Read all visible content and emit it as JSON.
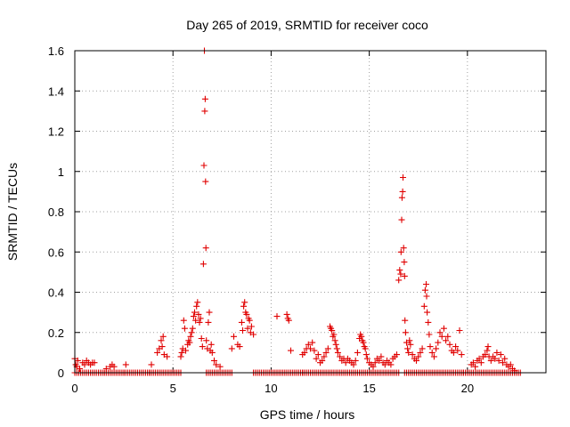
{
  "chart_data": {
    "type": "scatter",
    "title": "Day 265 of 2019, SRMTID for receiver coco",
    "xlabel": "GPS time / hours",
    "ylabel": "SRMTID / TECUs",
    "xlim": [
      0,
      24
    ],
    "ylim": [
      0,
      1.6
    ],
    "xticks": [
      0,
      5,
      10,
      15,
      20
    ],
    "xtick_labels": [
      "0",
      "5",
      "10",
      "15",
      "20"
    ],
    "yticks": [
      0,
      0.2,
      0.4,
      0.6,
      0.8,
      1.0,
      1.2,
      1.4,
      1.6
    ],
    "ytick_labels": [
      "0",
      "0.2",
      "0.4",
      "0.6",
      "0.8",
      "1",
      "1.2",
      "1.4",
      "1.6"
    ],
    "grid": true,
    "marker": "+",
    "color": "#e00000",
    "series": [
      {
        "name": "SRMTID",
        "points": [
          [
            0.0,
            0.07
          ],
          [
            0.05,
            0.04
          ],
          [
            0.1,
            0.03
          ],
          [
            0.15,
            0.06
          ],
          [
            0.25,
            0.02
          ],
          [
            0.4,
            0.05
          ],
          [
            0.5,
            0.04
          ],
          [
            0.6,
            0.06
          ],
          [
            0.7,
            0.05
          ],
          [
            0.8,
            0.04
          ],
          [
            0.9,
            0.05
          ],
          [
            1.0,
            0.05
          ],
          [
            1.6,
            0.02
          ],
          [
            1.8,
            0.03
          ],
          [
            1.9,
            0.04
          ],
          [
            2.0,
            0.03
          ],
          [
            2.6,
            0.04
          ],
          [
            3.9,
            0.04
          ],
          [
            4.2,
            0.1
          ],
          [
            4.3,
            0.12
          ],
          [
            4.4,
            0.16
          ],
          [
            4.45,
            0.13
          ],
          [
            4.5,
            0.18
          ],
          [
            4.55,
            0.09
          ],
          [
            4.7,
            0.08
          ],
          [
            5.4,
            0.08
          ],
          [
            5.45,
            0.1
          ],
          [
            5.5,
            0.12
          ],
          [
            5.55,
            0.26
          ],
          [
            5.6,
            0.22
          ],
          [
            5.65,
            0.11
          ],
          [
            5.75,
            0.14
          ],
          [
            5.8,
            0.16
          ],
          [
            5.85,
            0.15
          ],
          [
            5.9,
            0.18
          ],
          [
            5.95,
            0.2
          ],
          [
            6.0,
            0.22
          ],
          [
            6.05,
            0.28
          ],
          [
            6.1,
            0.3
          ],
          [
            6.15,
            0.26
          ],
          [
            6.2,
            0.33
          ],
          [
            6.25,
            0.35
          ],
          [
            6.3,
            0.29
          ],
          [
            6.35,
            0.25
          ],
          [
            6.4,
            0.27
          ],
          [
            6.45,
            0.17
          ],
          [
            6.5,
            0.13
          ],
          [
            6.55,
            0.54
          ],
          [
            6.58,
            1.03
          ],
          [
            6.6,
            1.6
          ],
          [
            6.62,
            1.3
          ],
          [
            6.64,
            1.36
          ],
          [
            6.66,
            0.95
          ],
          [
            6.68,
            0.62
          ],
          [
            6.7,
            0.16
          ],
          [
            6.75,
            0.12
          ],
          [
            6.8,
            0.25
          ],
          [
            6.85,
            0.3
          ],
          [
            6.9,
            0.11
          ],
          [
            6.95,
            0.14
          ],
          [
            7.0,
            0.1
          ],
          [
            7.1,
            0.06
          ],
          [
            7.2,
            0.04
          ],
          [
            7.4,
            0.03
          ],
          [
            8.0,
            0.12
          ],
          [
            8.1,
            0.18
          ],
          [
            8.3,
            0.14
          ],
          [
            8.4,
            0.13
          ],
          [
            8.5,
            0.25
          ],
          [
            8.55,
            0.21
          ],
          [
            8.6,
            0.33
          ],
          [
            8.65,
            0.35
          ],
          [
            8.7,
            0.3
          ],
          [
            8.75,
            0.29
          ],
          [
            8.8,
            0.22
          ],
          [
            8.85,
            0.27
          ],
          [
            8.9,
            0.26
          ],
          [
            8.95,
            0.2
          ],
          [
            9.0,
            0.23
          ],
          [
            9.1,
            0.19
          ],
          [
            10.3,
            0.28
          ],
          [
            10.8,
            0.29
          ],
          [
            10.85,
            0.27
          ],
          [
            10.9,
            0.26
          ],
          [
            11.0,
            0.11
          ],
          [
            11.6,
            0.09
          ],
          [
            11.7,
            0.1
          ],
          [
            11.8,
            0.12
          ],
          [
            11.9,
            0.14
          ],
          [
            12.0,
            0.12
          ],
          [
            12.1,
            0.15
          ],
          [
            12.2,
            0.11
          ],
          [
            12.3,
            0.07
          ],
          [
            12.4,
            0.09
          ],
          [
            12.5,
            0.05
          ],
          [
            12.6,
            0.06
          ],
          [
            12.7,
            0.08
          ],
          [
            12.8,
            0.1
          ],
          [
            12.9,
            0.12
          ],
          [
            13.0,
            0.23
          ],
          [
            13.05,
            0.22
          ],
          [
            13.1,
            0.21
          ],
          [
            13.15,
            0.18
          ],
          [
            13.2,
            0.19
          ],
          [
            13.25,
            0.16
          ],
          [
            13.3,
            0.14
          ],
          [
            13.35,
            0.12
          ],
          [
            13.4,
            0.1
          ],
          [
            13.5,
            0.08
          ],
          [
            13.6,
            0.06
          ],
          [
            13.7,
            0.07
          ],
          [
            13.8,
            0.05
          ],
          [
            13.9,
            0.07
          ],
          [
            14.0,
            0.06
          ],
          [
            14.1,
            0.05
          ],
          [
            14.2,
            0.04
          ],
          [
            14.3,
            0.06
          ],
          [
            14.4,
            0.1
          ],
          [
            14.5,
            0.17
          ],
          [
            14.55,
            0.19
          ],
          [
            14.6,
            0.18
          ],
          [
            14.65,
            0.16
          ],
          [
            14.7,
            0.15
          ],
          [
            14.75,
            0.13
          ],
          [
            14.8,
            0.12
          ],
          [
            14.85,
            0.09
          ],
          [
            14.9,
            0.07
          ],
          [
            15.0,
            0.05
          ],
          [
            15.1,
            0.04
          ],
          [
            15.2,
            0.03
          ],
          [
            15.3,
            0.05
          ],
          [
            15.4,
            0.07
          ],
          [
            15.5,
            0.06
          ],
          [
            15.6,
            0.08
          ],
          [
            15.7,
            0.05
          ],
          [
            15.8,
            0.04
          ],
          [
            15.9,
            0.06
          ],
          [
            16.0,
            0.05
          ],
          [
            16.1,
            0.04
          ],
          [
            16.2,
            0.07
          ],
          [
            16.3,
            0.08
          ],
          [
            16.4,
            0.09
          ],
          [
            16.5,
            0.46
          ],
          [
            16.55,
            0.51
          ],
          [
            16.6,
            0.49
          ],
          [
            16.62,
            0.6
          ],
          [
            16.65,
            0.76
          ],
          [
            16.67,
            0.87
          ],
          [
            16.7,
            0.9
          ],
          [
            16.72,
            0.97
          ],
          [
            16.75,
            0.62
          ],
          [
            16.78,
            0.55
          ],
          [
            16.8,
            0.48
          ],
          [
            16.82,
            0.26
          ],
          [
            16.85,
            0.2
          ],
          [
            16.9,
            0.15
          ],
          [
            16.95,
            0.12
          ],
          [
            17.0,
            0.1
          ],
          [
            17.05,
            0.16
          ],
          [
            17.1,
            0.14
          ],
          [
            17.2,
            0.09
          ],
          [
            17.3,
            0.07
          ],
          [
            17.4,
            0.06
          ],
          [
            17.5,
            0.08
          ],
          [
            17.6,
            0.1
          ],
          [
            17.7,
            0.12
          ],
          [
            17.8,
            0.33
          ],
          [
            17.85,
            0.41
          ],
          [
            17.9,
            0.44
          ],
          [
            17.92,
            0.38
          ],
          [
            17.95,
            0.3
          ],
          [
            18.0,
            0.25
          ],
          [
            18.05,
            0.19
          ],
          [
            18.1,
            0.13
          ],
          [
            18.2,
            0.1
          ],
          [
            18.3,
            0.08
          ],
          [
            18.4,
            0.12
          ],
          [
            18.5,
            0.15
          ],
          [
            18.6,
            0.2
          ],
          [
            18.7,
            0.18
          ],
          [
            18.8,
            0.22
          ],
          [
            18.9,
            0.16
          ],
          [
            19.0,
            0.18
          ],
          [
            19.1,
            0.14
          ],
          [
            19.2,
            0.11
          ],
          [
            19.3,
            0.1
          ],
          [
            19.4,
            0.13
          ],
          [
            19.5,
            0.11
          ],
          [
            19.6,
            0.21
          ],
          [
            19.7,
            0.09
          ],
          [
            20.2,
            0.04
          ],
          [
            20.3,
            0.05
          ],
          [
            20.4,
            0.03
          ],
          [
            20.5,
            0.06
          ],
          [
            20.6,
            0.07
          ],
          [
            20.7,
            0.05
          ],
          [
            20.8,
            0.08
          ],
          [
            20.9,
            0.09
          ],
          [
            21.0,
            0.11
          ],
          [
            21.05,
            0.13
          ],
          [
            21.1,
            0.08
          ],
          [
            21.2,
            0.06
          ],
          [
            21.3,
            0.08
          ],
          [
            21.4,
            0.07
          ],
          [
            21.5,
            0.1
          ],
          [
            21.6,
            0.06
          ],
          [
            21.7,
            0.09
          ],
          [
            21.8,
            0.05
          ],
          [
            21.9,
            0.07
          ],
          [
            22.0,
            0.04
          ],
          [
            22.1,
            0.03
          ],
          [
            22.2,
            0.04
          ],
          [
            22.3,
            0.02
          ],
          [
            22.4,
            0.01
          ]
        ],
        "baseline_ranges": [
          [
            0.0,
            1.5
          ],
          [
            1.5,
            2.5
          ],
          [
            2.5,
            3.8
          ],
          [
            3.8,
            5.4
          ],
          [
            6.7,
            8.0
          ],
          [
            9.1,
            11.6
          ],
          [
            11.6,
            16.5
          ],
          [
            16.8,
            19.8
          ],
          [
            19.8,
            22.7
          ]
        ]
      }
    ]
  }
}
